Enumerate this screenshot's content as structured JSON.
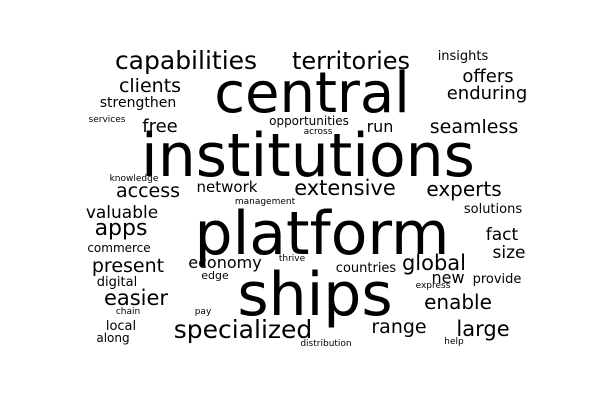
{
  "word_cloud": {
    "text_color": "#000000",
    "background_color": "#ffffff",
    "words": [
      {
        "id": "institutions",
        "text": "institutions"
      },
      {
        "id": "platform",
        "text": "platform"
      },
      {
        "id": "ships",
        "text": "ships"
      },
      {
        "id": "central",
        "text": "central"
      },
      {
        "id": "specialized",
        "text": "specialized"
      },
      {
        "id": "capabilities",
        "text": "capabilities"
      },
      {
        "id": "territories",
        "text": "territories"
      },
      {
        "id": "extensive",
        "text": "extensive"
      },
      {
        "id": "seamless",
        "text": "seamless"
      },
      {
        "id": "enable",
        "text": "enable"
      },
      {
        "id": "large",
        "text": "large"
      },
      {
        "id": "global",
        "text": "global"
      },
      {
        "id": "easier",
        "text": "easier"
      },
      {
        "id": "experts",
        "text": "experts"
      },
      {
        "id": "clients",
        "text": "clients"
      },
      {
        "id": "access",
        "text": "access"
      },
      {
        "id": "present",
        "text": "present"
      },
      {
        "id": "enduring",
        "text": "enduring"
      },
      {
        "id": "offers",
        "text": "offers"
      },
      {
        "id": "apps",
        "text": "apps"
      },
      {
        "id": "range",
        "text": "range"
      },
      {
        "id": "free",
        "text": "free"
      },
      {
        "id": "valuable",
        "text": "valuable"
      },
      {
        "id": "fact",
        "text": "fact"
      },
      {
        "id": "economy",
        "text": "economy"
      },
      {
        "id": "strengthen",
        "text": "strengthen"
      },
      {
        "id": "size",
        "text": "size"
      },
      {
        "id": "network",
        "text": "network"
      },
      {
        "id": "run",
        "text": "run"
      },
      {
        "id": "new",
        "text": "new"
      },
      {
        "id": "solutions",
        "text": "solutions"
      },
      {
        "id": "countries",
        "text": "countries"
      },
      {
        "id": "provide",
        "text": "provide"
      },
      {
        "id": "insights",
        "text": "insights"
      },
      {
        "id": "digital",
        "text": "digital"
      },
      {
        "id": "commerce",
        "text": "commerce"
      },
      {
        "id": "opportunities",
        "text": "opportunities"
      },
      {
        "id": "local",
        "text": "local"
      },
      {
        "id": "along",
        "text": "along"
      },
      {
        "id": "edge",
        "text": "edge"
      },
      {
        "id": "across",
        "text": "across"
      },
      {
        "id": "services",
        "text": "services"
      },
      {
        "id": "knowledge",
        "text": "knowledge"
      },
      {
        "id": "management",
        "text": "management"
      },
      {
        "id": "thrive",
        "text": "thrive"
      },
      {
        "id": "express",
        "text": "express"
      },
      {
        "id": "chain",
        "text": "chain"
      },
      {
        "id": "pay",
        "text": "pay"
      },
      {
        "id": "distribution",
        "text": "distribution"
      },
      {
        "id": "help",
        "text": "help"
      }
    ]
  }
}
